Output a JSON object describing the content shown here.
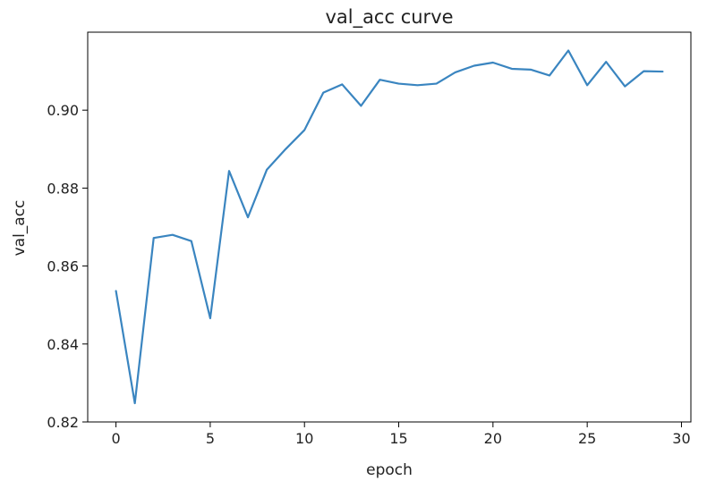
{
  "chart_data": {
    "type": "line",
    "title": "val_acc curve",
    "xlabel": "epoch",
    "ylabel": "val_acc",
    "xlim": [
      -1.5,
      30.5
    ],
    "ylim": [
      0.82,
      0.92
    ],
    "xticks": [
      0,
      5,
      10,
      15,
      20,
      25,
      30
    ],
    "yticks": [
      0.82,
      0.84,
      0.86,
      0.88,
      0.9
    ],
    "ytick_labels": [
      "0.82",
      "0.84",
      "0.86",
      "0.88",
      "0.90"
    ],
    "grid": false,
    "series": [
      {
        "color": "#3a85c0",
        "x": [
          0,
          1,
          2,
          3,
          4,
          5,
          6,
          7,
          8,
          9,
          10,
          11,
          12,
          13,
          14,
          15,
          16,
          17,
          18,
          19,
          20,
          21,
          22,
          23,
          24,
          25,
          26,
          27,
          28,
          29
        ],
        "values": [
          0.8536,
          0.8248,
          0.8672,
          0.868,
          0.8664,
          0.8466,
          0.8844,
          0.8725,
          0.8847,
          0.89,
          0.8949,
          0.9045,
          0.9066,
          0.9011,
          0.9078,
          0.9068,
          0.9064,
          0.9068,
          0.9097,
          0.9114,
          0.9122,
          0.9106,
          0.9104,
          0.9089,
          0.9153,
          0.9064,
          0.9124,
          0.9061,
          0.91,
          0.9099
        ]
      }
    ]
  }
}
